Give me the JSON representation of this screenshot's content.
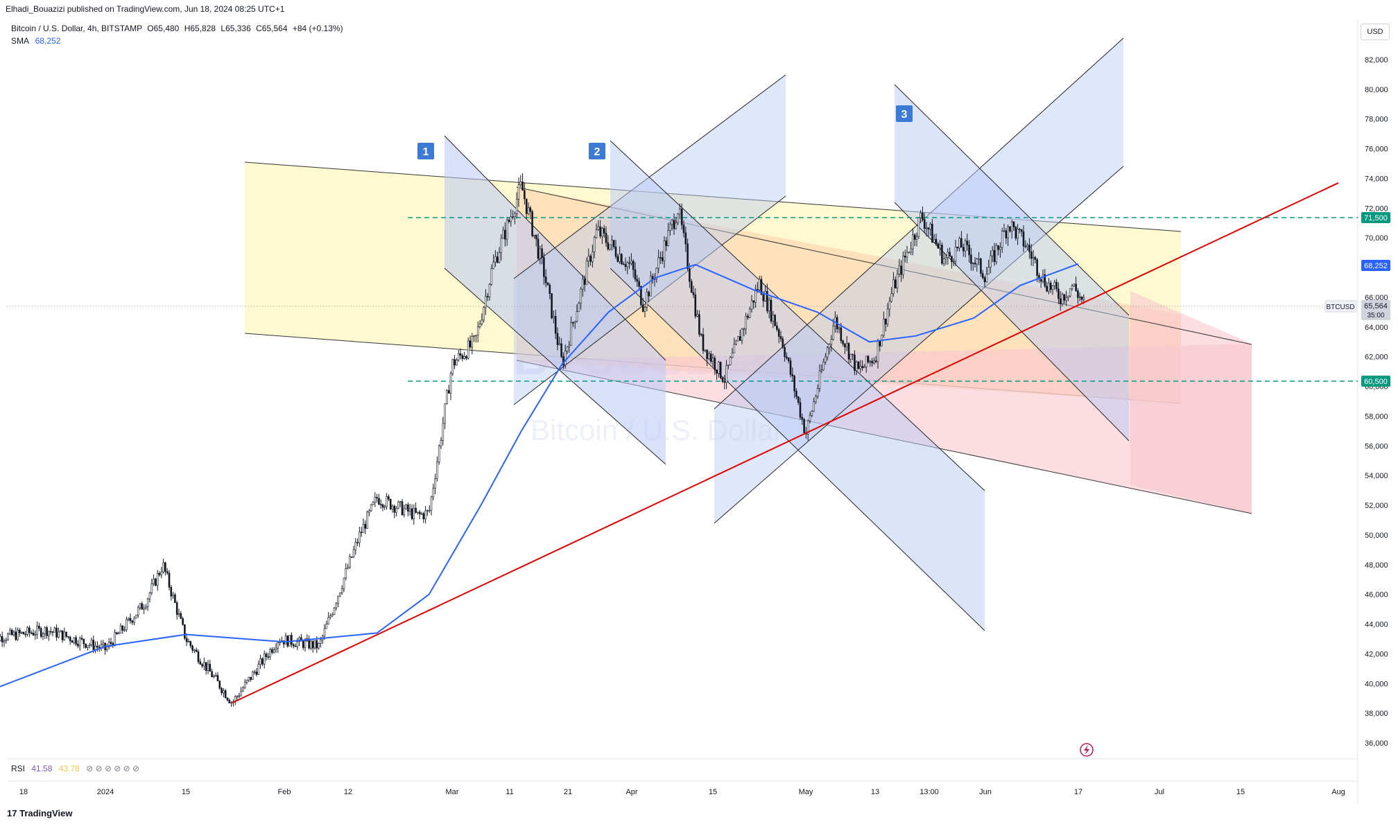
{
  "header": {
    "published_line": "Elhadi_Bouazizi published on TradingView.com, Jun 18, 2024 08:25 UTC+1"
  },
  "symbol": {
    "title": "Bitcoin / U.S. Dollar, 4h, BITSTAMP",
    "open": "O65,480",
    "high": "H65,828",
    "low": "L65,336",
    "close": "C65,564",
    "change": "+84 (+0.13%)"
  },
  "sma": {
    "label": "SMA",
    "value": "68,252",
    "color": "#2962ff"
  },
  "rsi": {
    "label": "RSI",
    "value1": "41.58",
    "value2": "43.78",
    "icons": "⊘ ⊘ ⊘ ⊘ ⊘ ⊘"
  },
  "currency_button": "USD",
  "footer_logo": "TradingView",
  "watermark": {
    "ticker": "BTCUSD, 4h",
    "name": "Bitcoin / U.S. Dollar"
  },
  "price_tags": {
    "upper_level": "71,500",
    "sma_value": "68,252",
    "ticker_label": "BTCUSD",
    "last_price": "65,564",
    "countdown": "35:00",
    "lower_level": "60,500"
  },
  "markers": [
    "1",
    "2",
    "3"
  ],
  "colors": {
    "up": "#131722",
    "sma": "#2962ff",
    "trend": "#e00000",
    "level": "#089981",
    "channel_yellow": "#fff9c4",
    "channel_orange": "#ffd7b5",
    "channel_pink": "#f8c8cf",
    "pitchfork_blue": "#c5d3f7"
  },
  "chart_data": {
    "type": "candlestick",
    "title": "Bitcoin / U.S. Dollar, 4h, BITSTAMP",
    "y_ticks": [
      "82,000",
      "80,000",
      "78,000",
      "76,000",
      "74,000",
      "72,000",
      "70,000",
      "68,000",
      "66,000",
      "64,000",
      "62,000",
      "60,000",
      "58,000",
      "56,000",
      "54,000",
      "52,000",
      "50,000",
      "48,000",
      "46,000",
      "44,000",
      "42,000",
      "40,000",
      "38,000",
      "36,000"
    ],
    "x_ticks": [
      "18",
      "2024",
      "15",
      "Feb",
      "12",
      "Mar",
      "11",
      "21",
      "Apr",
      "15",
      "May",
      "13",
      "13:00",
      "Jun",
      "17",
      "Jul",
      "15",
      "Aug"
    ],
    "ylim": [
      35000,
      84000
    ],
    "price_path": [
      {
        "date": "Dec 12",
        "price": 43000
      },
      {
        "date": "Dec 22",
        "price": 43600
      },
      {
        "date": "Jan 1",
        "price": 42300
      },
      {
        "date": "Jan 8",
        "price": 45500
      },
      {
        "date": "Jan 11",
        "price": 48000
      },
      {
        "date": "Jan 15",
        "price": 43000
      },
      {
        "date": "Jan 23",
        "price": 38700
      },
      {
        "date": "Jan 31",
        "price": 43000
      },
      {
        "date": "Feb 7",
        "price": 42500
      },
      {
        "date": "Feb 14",
        "price": 50000
      },
      {
        "date": "Feb 17",
        "price": 52500
      },
      {
        "date": "Feb 24",
        "price": 51300
      },
      {
        "date": "Feb 26",
        "price": 51500
      },
      {
        "date": "Mar 1",
        "price": 61500
      },
      {
        "date": "Mar 5",
        "price": 63000
      },
      {
        "date": "Mar 8",
        "price": 68000
      },
      {
        "date": "Mar 13",
        "price": 73500
      },
      {
        "date": "Mar 17",
        "price": 67500
      },
      {
        "date": "Mar 20",
        "price": 61500
      },
      {
        "date": "Mar 26",
        "price": 70500
      },
      {
        "date": "Apr 1",
        "price": 68000
      },
      {
        "date": "Apr 3",
        "price": 65500
      },
      {
        "date": "Apr 9",
        "price": 72000
      },
      {
        "date": "Apr 13",
        "price": 63000
      },
      {
        "date": "Apr 17",
        "price": 60500
      },
      {
        "date": "Apr 23",
        "price": 67000
      },
      {
        "date": "Apr 27",
        "price": 63000
      },
      {
        "date": "May 1",
        "price": 56800
      },
      {
        "date": "May 6",
        "price": 64500
      },
      {
        "date": "May 10",
        "price": 61000
      },
      {
        "date": "May 13",
        "price": 62000
      },
      {
        "date": "May 16",
        "price": 66500
      },
      {
        "date": "May 21",
        "price": 71500
      },
      {
        "date": "May 25",
        "price": 68500
      },
      {
        "date": "May 28",
        "price": 69500
      },
      {
        "date": "Jun 1",
        "price": 67500
      },
      {
        "date": "Jun 5",
        "price": 71000
      },
      {
        "date": "Jun 8",
        "price": 69500
      },
      {
        "date": "Jun 11",
        "price": 67200
      },
      {
        "date": "Jun 14",
        "price": 66000
      },
      {
        "date": "Jun 16",
        "price": 66800
      },
      {
        "date": "Jun 18",
        "price": 65564
      }
    ],
    "sma_path": [
      {
        "date": "Dec 12",
        "price": 39500
      },
      {
        "date": "Jan 1",
        "price": 42500
      },
      {
        "date": "Jan 15",
        "price": 43300
      },
      {
        "date": "Feb 1",
        "price": 42800
      },
      {
        "date": "Feb 17",
        "price": 43400
      },
      {
        "date": "Feb 26",
        "price": 46000
      },
      {
        "date": "Mar 6",
        "price": 52000
      },
      {
        "date": "Mar 13",
        "price": 57000
      },
      {
        "date": "Mar 20",
        "price": 61500
      },
      {
        "date": "Mar 28",
        "price": 65000
      },
      {
        "date": "Apr 5",
        "price": 67300
      },
      {
        "date": "Apr 12",
        "price": 68200
      },
      {
        "date": "Apr 22",
        "price": 66500
      },
      {
        "date": "May 3",
        "price": 65000
      },
      {
        "date": "May 12",
        "price": 63000
      },
      {
        "date": "May 20",
        "price": 63400
      },
      {
        "date": "May 30",
        "price": 64600
      },
      {
        "date": "Jun 7",
        "price": 66800
      },
      {
        "date": "Jun 17",
        "price": 68252
      }
    ],
    "levels": [
      71500,
      60500
    ],
    "trendline": [
      {
        "date": "Jan 23",
        "price": 38700
      },
      {
        "date": "Aug 1",
        "price": 73700
      }
    ]
  }
}
